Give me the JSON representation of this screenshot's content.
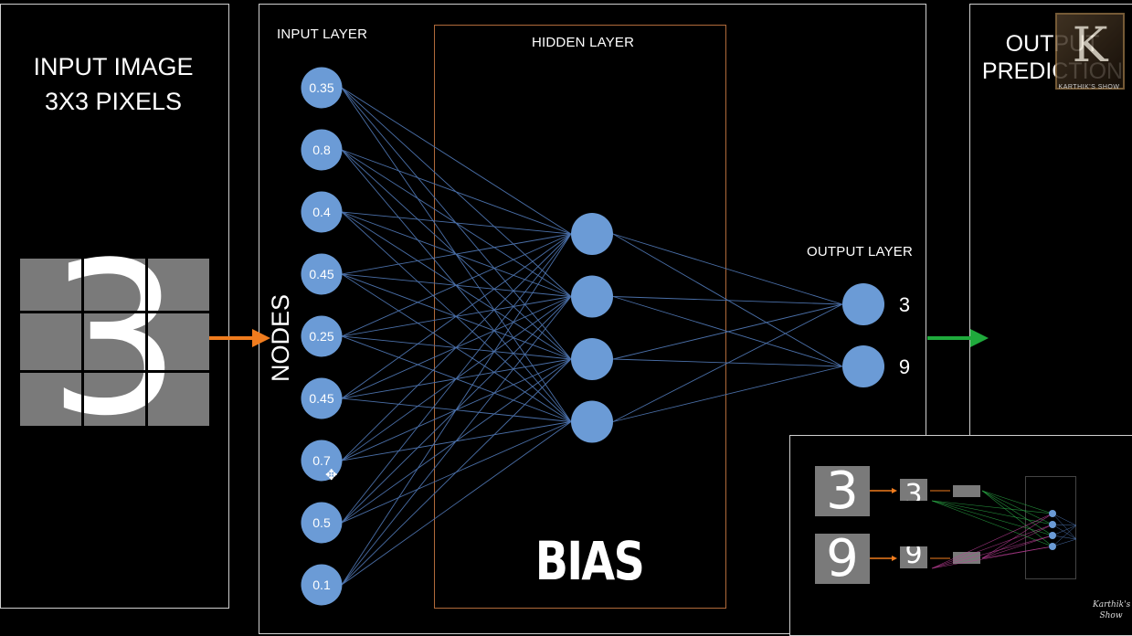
{
  "panels": {
    "input_image": {
      "title_line1": "INPUT IMAGE",
      "title_line2": "3X3 PIXELS",
      "digit": "3"
    },
    "network": {
      "input_layer_label": "INPUT LAYER",
      "hidden_layer_label": "HIDDEN LAYER",
      "output_layer_label": "OUTPUT LAYER",
      "nodes_label": "NODES",
      "bias_label": "BIAS"
    },
    "output": {
      "title_line1": "OUTPUT",
      "title_line2": "PREDICTION"
    }
  },
  "network": {
    "input_values": [
      "0.35",
      "0.8",
      "0.4",
      "0.45",
      "0.25",
      "0.45",
      "0.7",
      "0.5",
      "0.1"
    ],
    "hidden_count": 4,
    "output_labels": [
      "3",
      "9"
    ]
  },
  "inset": {
    "digit_top": "3",
    "digit_bottom": "9",
    "mini_top": "3",
    "mini_bottom": "9"
  },
  "watermark": {
    "letter": "K",
    "text": "KARTHIK'S SHOW"
  },
  "signature": "Karthik's Show",
  "colors": {
    "node_fill": "#6b9bd6",
    "edge": "#4a6fa8",
    "arrow_in": "#f07c1e",
    "arrow_out": "#1faa3c",
    "panel_border": "#cfcfcf",
    "hidden_border": "#b06a3a",
    "pixel": "#7a7a7a"
  },
  "icons": {
    "cursor": "move-cursor-icon"
  }
}
